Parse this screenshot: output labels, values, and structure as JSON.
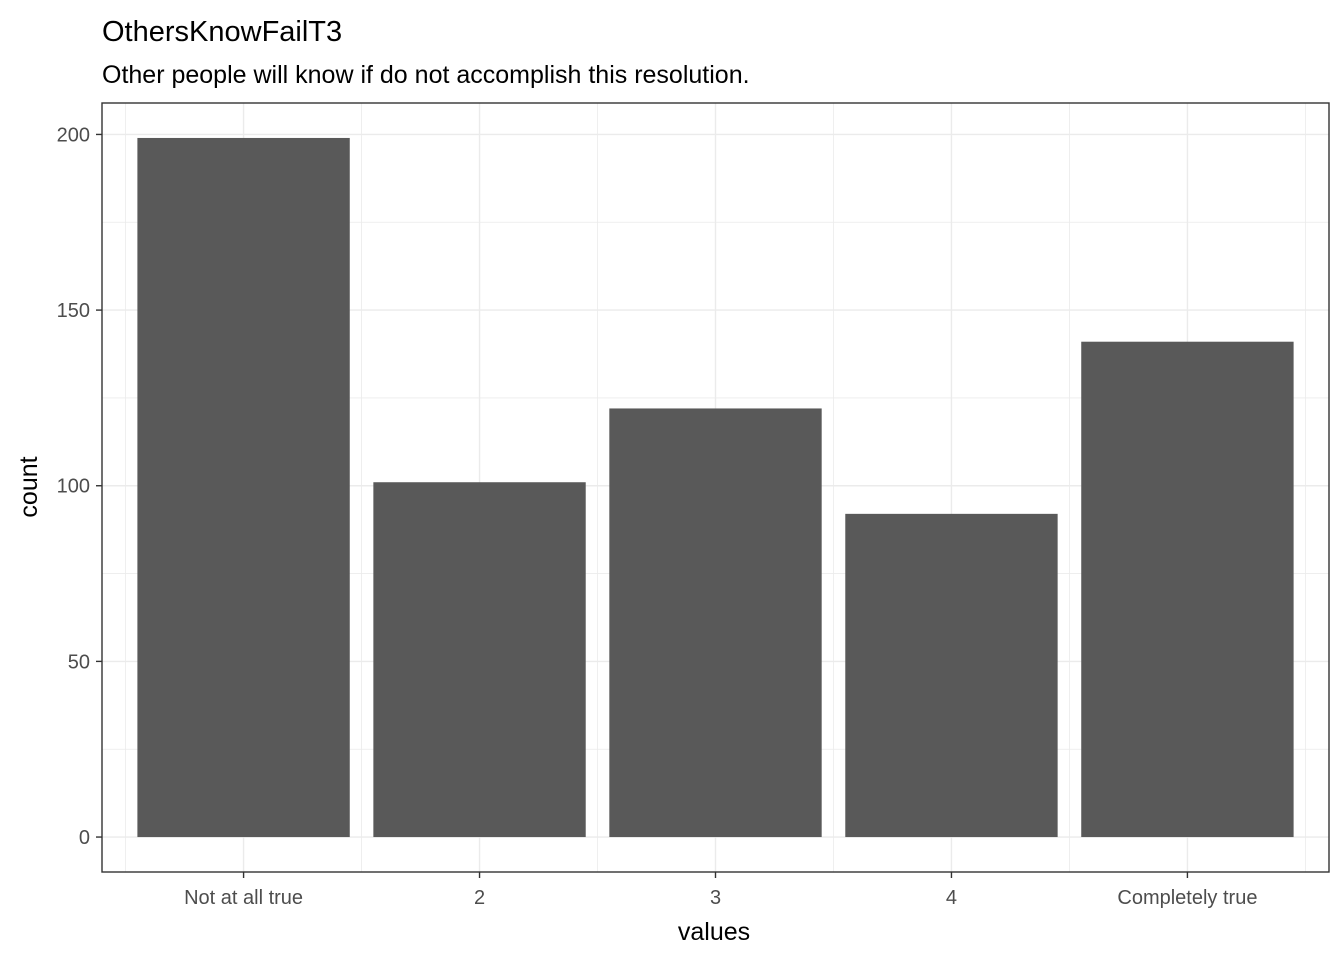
{
  "chart_data": {
    "type": "bar",
    "title": "OthersKnowFailT3",
    "subtitle": "Other people will know if do not accomplish this resolution.",
    "xlabel": "values",
    "ylabel": "count",
    "categories": [
      "Not at all true",
      "2",
      "3",
      "4",
      "Completely true"
    ],
    "values": [
      199,
      101,
      122,
      92,
      141
    ],
    "ylim": [
      -9.95,
      208.95
    ],
    "yticks": [
      0,
      50,
      100,
      150,
      200
    ],
    "grid": true,
    "legend": "none",
    "bar_color": "#595959",
    "grid_color": "#ebebeb",
    "panel_border_color": "#333333"
  }
}
